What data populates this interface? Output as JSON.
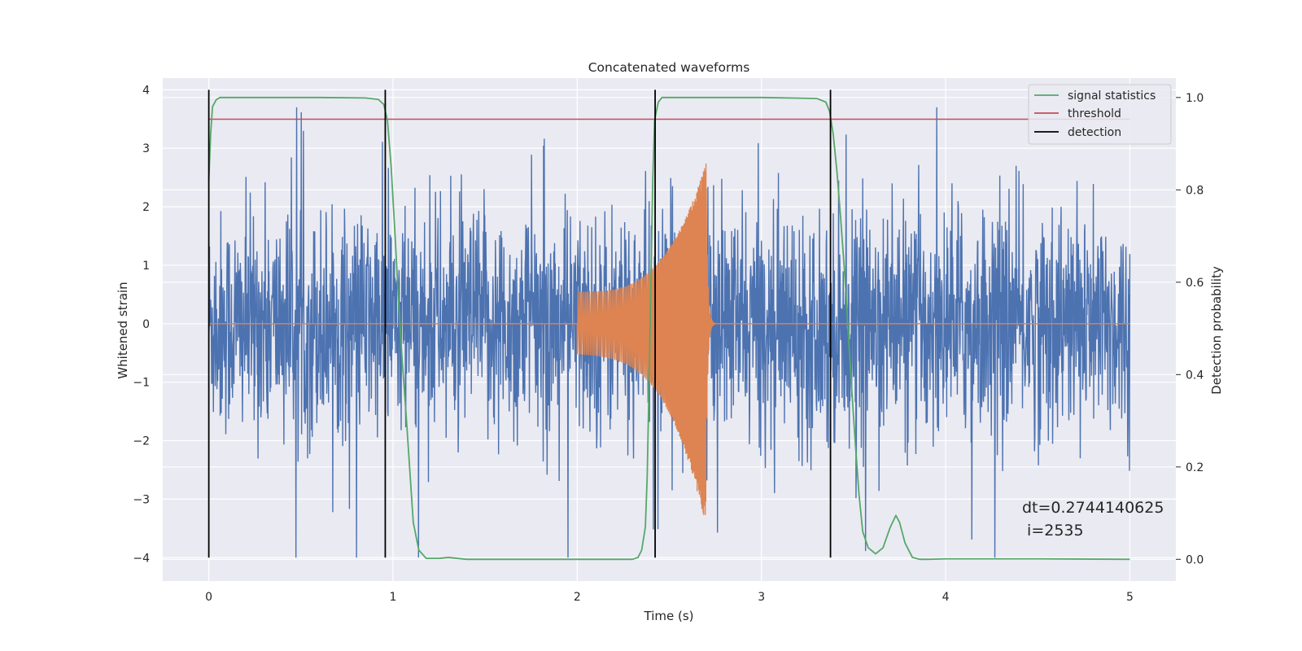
{
  "chart_data": {
    "type": "line",
    "title": "Concatenated waveforms",
    "xlabel": "Time (s)",
    "ylabel": "Whitened strain",
    "ylabel_right": "Detection probability",
    "xlim": [
      -0.25,
      5.25
    ],
    "ylim_left": [
      -4.4,
      4.2
    ],
    "ylim_right": [
      -0.047,
      1.042
    ],
    "x_ticks": [
      "0",
      "1",
      "2",
      "3",
      "4",
      "5"
    ],
    "y_ticks_left": [
      "4",
      "3",
      "2",
      "1",
      "0",
      "−1",
      "−2",
      "−3",
      "−4"
    ],
    "y_ticks_right": [
      "1.0",
      "0.8",
      "0.6",
      "0.4",
      "0.2",
      "0.0"
    ],
    "grid": true,
    "legend_position": "upper right",
    "legend": [
      "signal statistics",
      "threshold",
      "detection"
    ],
    "annotation": [
      "dt=0.2744140625",
      " i=2535"
    ],
    "colors": {
      "strain": "#4c72b0",
      "injected_signal": "#dd8452",
      "signal_statistics": "#55a868",
      "threshold": "#c44e52",
      "detection": "#000000",
      "background": "#eaeaf2",
      "grid": "#ffffff"
    },
    "strain": {
      "x_range": [
        0,
        5
      ],
      "typical_band": [
        -1.5,
        1.5
      ],
      "extremes": [
        -4.0,
        3.7
      ]
    },
    "injected_signal": {
      "start": 2.0,
      "merger": 2.7,
      "end": 2.74,
      "amplitude_at_start": 0.55,
      "amplitude_peak": 2.75,
      "amplitude_min": -3.5
    },
    "signal_statistics": {
      "x": [
        0.0,
        0.01,
        0.02,
        0.04,
        0.06,
        0.1,
        0.3,
        0.6,
        0.85,
        0.92,
        0.95,
        0.97,
        0.99,
        1.01,
        1.03,
        1.05,
        1.07,
        1.09,
        1.11,
        1.14,
        1.18,
        1.25,
        1.3,
        1.35,
        1.4,
        2.0,
        2.3,
        2.33,
        2.35,
        2.37,
        2.38,
        2.39,
        2.4,
        2.41,
        2.42,
        2.44,
        2.46,
        2.5,
        3.0,
        3.3,
        3.35,
        3.37,
        3.39,
        3.41,
        3.43,
        3.45,
        3.47,
        3.49,
        3.51,
        3.53,
        3.55,
        3.58,
        3.62,
        3.66,
        3.7,
        3.73,
        3.75,
        3.78,
        3.82,
        3.86,
        3.9,
        4.0,
        4.5,
        5.0
      ],
      "y": [
        0.82,
        0.92,
        0.98,
        0.995,
        1.0,
        1.0,
        1.0,
        1.0,
        0.999,
        0.996,
        0.985,
        0.95,
        0.85,
        0.71,
        0.56,
        0.43,
        0.32,
        0.2,
        0.08,
        0.02,
        0.002,
        0.002,
        0.004,
        0.002,
        0.0,
        0.0,
        0.0,
        0.004,
        0.02,
        0.07,
        0.18,
        0.38,
        0.6,
        0.82,
        0.95,
        0.99,
        1.0,
        1.0,
        1.0,
        0.998,
        0.99,
        0.97,
        0.92,
        0.84,
        0.74,
        0.63,
        0.5,
        0.37,
        0.25,
        0.14,
        0.06,
        0.025,
        0.012,
        0.025,
        0.07,
        0.095,
        0.08,
        0.035,
        0.004,
        0.0,
        0.0,
        0.001,
        0.001,
        0.0
      ]
    },
    "threshold": {
      "value": 0.953,
      "x_range": [
        0.0,
        5.0
      ]
    },
    "detection": {
      "x": [
        0.0,
        0.958,
        2.423,
        3.375
      ],
      "y_range": [
        -4.0,
        4.0
      ]
    }
  }
}
